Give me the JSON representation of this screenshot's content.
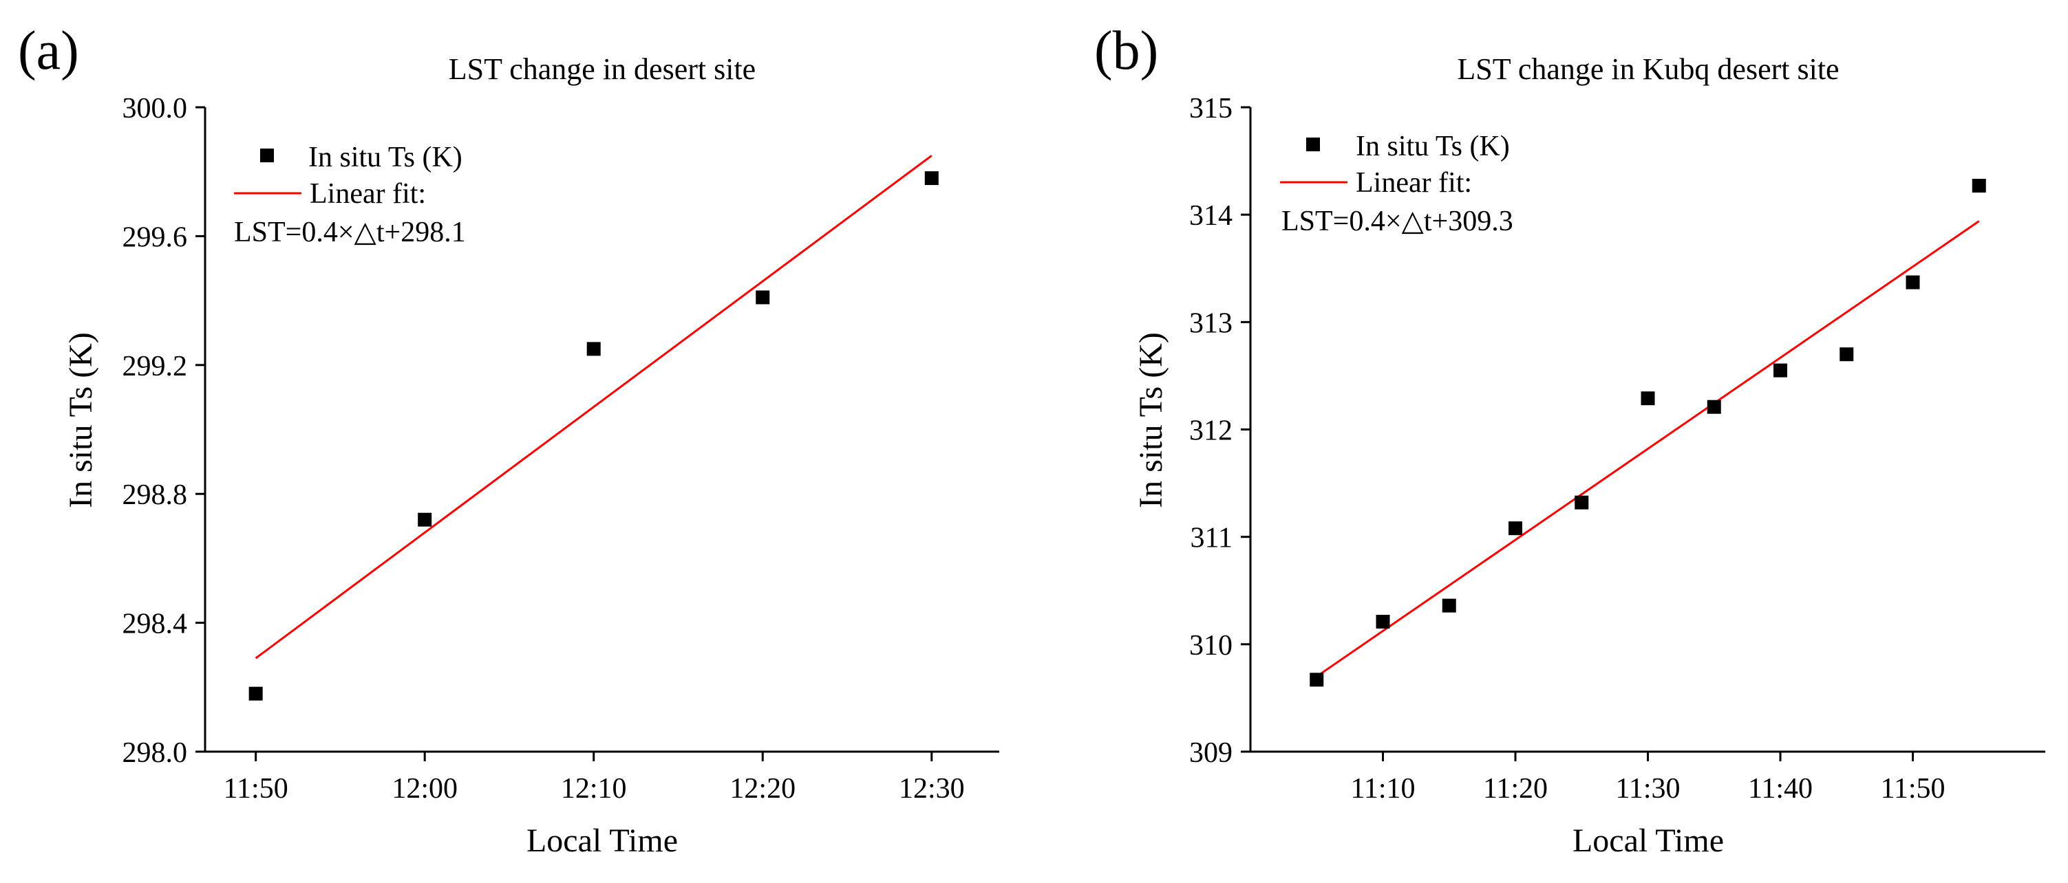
{
  "chart_data": [
    {
      "panel_label": "(a)",
      "type": "scatter",
      "title": "LST change in desert site",
      "xlabel": "Local Time",
      "ylabel": "In situ Ts (K)",
      "x_tick_labels": [
        "11:50",
        "12:00",
        "12:10",
        "12:20",
        "12:30"
      ],
      "x_ticks_minutes": [
        710,
        720,
        730,
        740,
        750
      ],
      "xlim_minutes": [
        707,
        754
      ],
      "y_ticks": [
        298.0,
        298.4,
        298.8,
        299.2,
        299.6,
        300.0
      ],
      "y_tick_labels": [
        "298.0",
        "298.4",
        "298.8",
        "299.2",
        "299.6",
        "300.0"
      ],
      "ylim": [
        298.0,
        300.0
      ],
      "legend": {
        "location": "top-left",
        "scatter_label": "In situ Ts (K)",
        "line_label": "Linear fit:",
        "equation": "LST=0.4×△t+298.1"
      },
      "series": [
        {
          "name": "In situ Ts (K)",
          "kind": "scatter",
          "color": "#000000",
          "x_minutes": [
            710,
            720,
            730,
            740,
            750
          ],
          "values": [
            298.18,
            298.72,
            299.25,
            299.41,
            299.78
          ]
        },
        {
          "name": "Linear fit",
          "kind": "line",
          "color": "#ff0000",
          "x_minutes": [
            710,
            750
          ],
          "values": [
            298.29,
            299.85
          ]
        }
      ]
    },
    {
      "panel_label": "(b)",
      "type": "scatter",
      "title": "LST change in Kubq desert site",
      "xlabel": "Local Time",
      "ylabel": "In situ Ts (K)",
      "x_tick_labels": [
        "11:10",
        "11:20",
        "11:30",
        "11:40",
        "11:50"
      ],
      "x_ticks_minutes": [
        670,
        680,
        690,
        700,
        710
      ],
      "xlim_minutes": [
        660,
        720
      ],
      "y_ticks": [
        309,
        310,
        311,
        312,
        313,
        314,
        315
      ],
      "y_tick_labels": [
        "309",
        "310",
        "311",
        "312",
        "313",
        "314",
        "315"
      ],
      "ylim": [
        309,
        315
      ],
      "legend": {
        "location": "top-left",
        "scatter_label": "In situ Ts (K)",
        "line_label": "Linear fit:",
        "equation": "LST=0.4×△t+309.3"
      },
      "series": [
        {
          "name": "In situ Ts (K)",
          "kind": "scatter",
          "color": "#000000",
          "x_minutes": [
            665,
            670,
            675,
            680,
            685,
            690,
            695,
            700,
            705,
            710,
            715
          ],
          "values": [
            309.67,
            310.21,
            310.36,
            311.08,
            311.32,
            312.29,
            312.21,
            312.55,
            312.7,
            313.37,
            314.27
          ]
        },
        {
          "name": "Linear fit",
          "kind": "line",
          "color": "#ff0000",
          "x_minutes": [
            665,
            715
          ],
          "values": [
            309.7,
            313.94
          ]
        }
      ]
    }
  ]
}
